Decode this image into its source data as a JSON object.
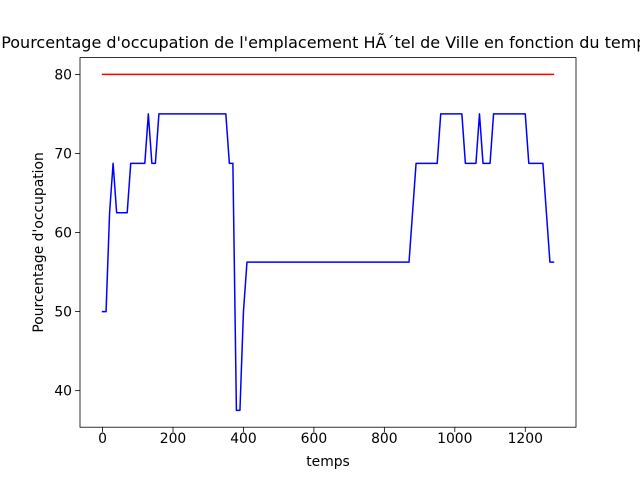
{
  "chart_data": {
    "type": "line",
    "title": "Pourcentage d'occupation de l'emplacement HÃ´tel de Ville en fonction du temps",
    "x_label": "temps",
    "y_label": "Pourcentage d'occupation",
    "xlim": [
      -64,
      1344
    ],
    "ylim": [
      35.375,
      82.125
    ],
    "xticks": [
      0,
      200,
      400,
      600,
      800,
      1000,
      1200
    ],
    "yticks": [
      40,
      50,
      60,
      70,
      80
    ],
    "grid": false,
    "series": [
      {
        "color": "#ff0000",
        "x": [
          0,
          1280
        ],
        "values": [
          80,
          80
        ]
      },
      {
        "color": "#0000ff",
        "x": [
          0,
          10,
          20,
          30,
          40,
          70,
          80,
          120,
          130,
          140,
          150,
          160,
          350,
          360,
          370,
          380,
          390,
          400,
          410,
          870,
          880,
          890,
          950,
          960,
          1020,
          1030,
          1060,
          1070,
          1080,
          1100,
          1110,
          1200,
          1210,
          1250,
          1260,
          1270,
          1280
        ],
        "values": [
          50,
          50,
          62.5,
          68.75,
          62.5,
          62.5,
          68.75,
          68.75,
          75,
          68.75,
          68.75,
          75,
          75,
          68.75,
          68.75,
          37.5,
          37.5,
          50,
          56.25,
          56.25,
          62.5,
          68.75,
          68.75,
          75,
          75,
          68.75,
          68.75,
          75,
          68.75,
          68.75,
          75,
          75,
          68.75,
          68.75,
          62.5,
          56.25,
          56.25
        ]
      }
    ]
  }
}
